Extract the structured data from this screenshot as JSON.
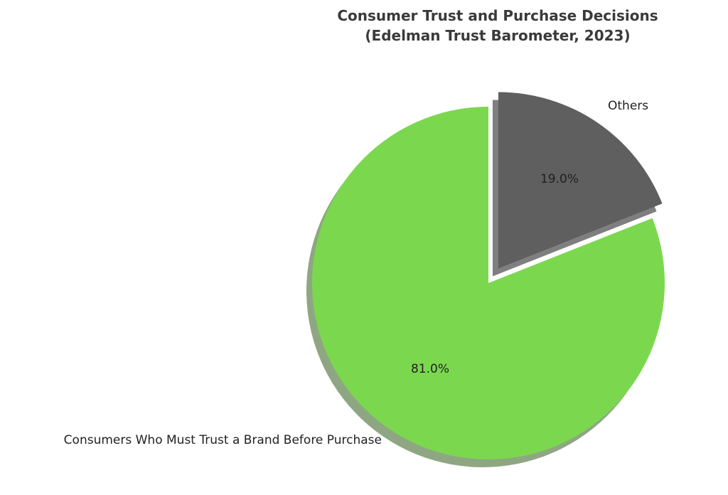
{
  "page": {
    "background": "#ffffff"
  },
  "chart_data": {
    "type": "pie",
    "title_lines": [
      "Consumer Trust and Purchase Decisions",
      "(Edelman Trust Barometer, 2023)"
    ],
    "labels": [
      "Consumers Who Must Trust a Brand Before Purchase",
      "Others"
    ],
    "values": [
      81.0,
      19.0
    ],
    "autopct_labels": [
      "81.0%",
      "19.0%"
    ],
    "colors": [
      "#7bd84e",
      "#5f5f5f"
    ],
    "shadow_colors": [
      "#8fa682",
      "#7f7f7f"
    ],
    "explode": [
      0,
      0.1
    ],
    "start_angle": 90,
    "direction": "counterclockwise",
    "shadow": true,
    "legend": "none",
    "title_color": "#3a3a3a",
    "label_color": "#222222"
  }
}
